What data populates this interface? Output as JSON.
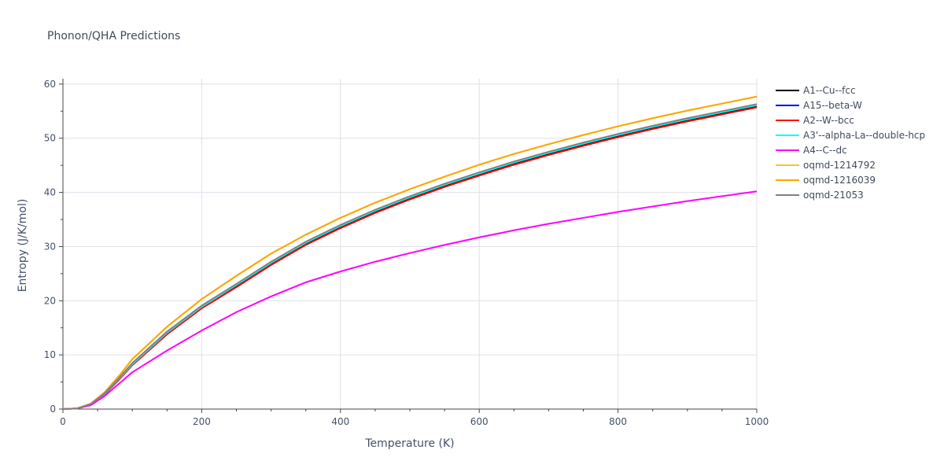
{
  "chart_data": {
    "type": "line",
    "title": "Phonon/QHA Predictions",
    "xlabel": "Temperature (K)",
    "ylabel": "Entropy (J/K/mol)",
    "xlim": [
      0,
      1000
    ],
    "ylim": [
      0,
      61
    ],
    "xticks": [
      0,
      200,
      400,
      600,
      800,
      1000
    ],
    "yticks": [
      0,
      10,
      20,
      30,
      40,
      50,
      60
    ],
    "grid": true,
    "legend_position": "top-right",
    "x": [
      0,
      20,
      40,
      60,
      80,
      100,
      150,
      200,
      250,
      300,
      350,
      400,
      450,
      500,
      550,
      600,
      650,
      700,
      750,
      800,
      850,
      900,
      950,
      1000
    ],
    "series": [
      {
        "name": "A1--Cu--fcc",
        "color": "#000000",
        "values": [
          0,
          0.1,
          0.9,
          2.8,
          5.4,
          8.2,
          14.0,
          18.8,
          22.7,
          26.8,
          30.5,
          33.6,
          36.4,
          38.9,
          41.2,
          43.3,
          45.3,
          47.1,
          48.8,
          50.4,
          51.9,
          53.3,
          54.6,
          55.9
        ]
      },
      {
        "name": "A15--beta-W",
        "color": "#0000ff",
        "values": [
          0,
          0.1,
          0.9,
          2.9,
          5.5,
          8.4,
          14.2,
          19.0,
          23.0,
          27.1,
          30.8,
          33.9,
          36.7,
          39.2,
          41.5,
          43.6,
          45.6,
          47.4,
          49.1,
          50.7,
          52.2,
          53.6,
          54.9,
          56.2
        ]
      },
      {
        "name": "A2--W--bcc",
        "color": "#ff0000",
        "values": [
          0,
          0.1,
          0.8,
          2.7,
          5.3,
          8.1,
          13.8,
          18.6,
          22.5,
          26.6,
          30.3,
          33.4,
          36.2,
          38.7,
          41.0,
          43.1,
          45.1,
          46.9,
          48.6,
          50.2,
          51.7,
          53.1,
          54.4,
          55.7
        ]
      },
      {
        "name": "A3'--alpha-La--double-hcp",
        "color": "#00ffff",
        "values": [
          0,
          0.1,
          0.9,
          2.8,
          5.5,
          8.3,
          14.1,
          18.9,
          22.9,
          27.0,
          30.7,
          33.8,
          36.6,
          39.1,
          41.4,
          43.5,
          45.5,
          47.3,
          49.0,
          50.6,
          52.1,
          53.5,
          54.8,
          56.1
        ]
      },
      {
        "name": "A4--C--dc",
        "color": "#ff00ff",
        "values": [
          0,
          0.1,
          0.7,
          2.4,
          4.6,
          6.8,
          10.8,
          14.5,
          17.9,
          20.8,
          23.4,
          25.4,
          27.2,
          28.8,
          30.3,
          31.7,
          33.0,
          34.2,
          35.3,
          36.4,
          37.4,
          38.4,
          39.3,
          40.2
        ]
      },
      {
        "name": "oqmd-1214792",
        "color": "#f4c430",
        "values": [
          0,
          0.1,
          1.0,
          3.1,
          6.0,
          9.2,
          15.2,
          20.3,
          24.6,
          28.7,
          32.2,
          35.3,
          38.1,
          40.6,
          42.9,
          45.1,
          47.1,
          48.9,
          50.6,
          52.2,
          53.7,
          55.1,
          56.4,
          57.7
        ]
      },
      {
        "name": "oqmd-1216039",
        "color": "#ffa500",
        "values": [
          0,
          0.1,
          1.0,
          3.1,
          6.0,
          9.2,
          15.2,
          20.3,
          24.6,
          28.7,
          32.2,
          35.3,
          38.1,
          40.6,
          42.9,
          45.1,
          47.1,
          48.9,
          50.6,
          52.2,
          53.7,
          55.1,
          56.4,
          57.7
        ]
      },
      {
        "name": "oqmd-21053",
        "color": "#808080",
        "values": [
          0,
          0.1,
          0.9,
          2.9,
          5.6,
          8.5,
          14.3,
          19.1,
          23.1,
          27.2,
          30.9,
          34.0,
          36.8,
          39.3,
          41.6,
          43.7,
          45.7,
          47.5,
          49.2,
          50.8,
          52.3,
          53.7,
          55.0,
          56.3
        ]
      }
    ]
  }
}
